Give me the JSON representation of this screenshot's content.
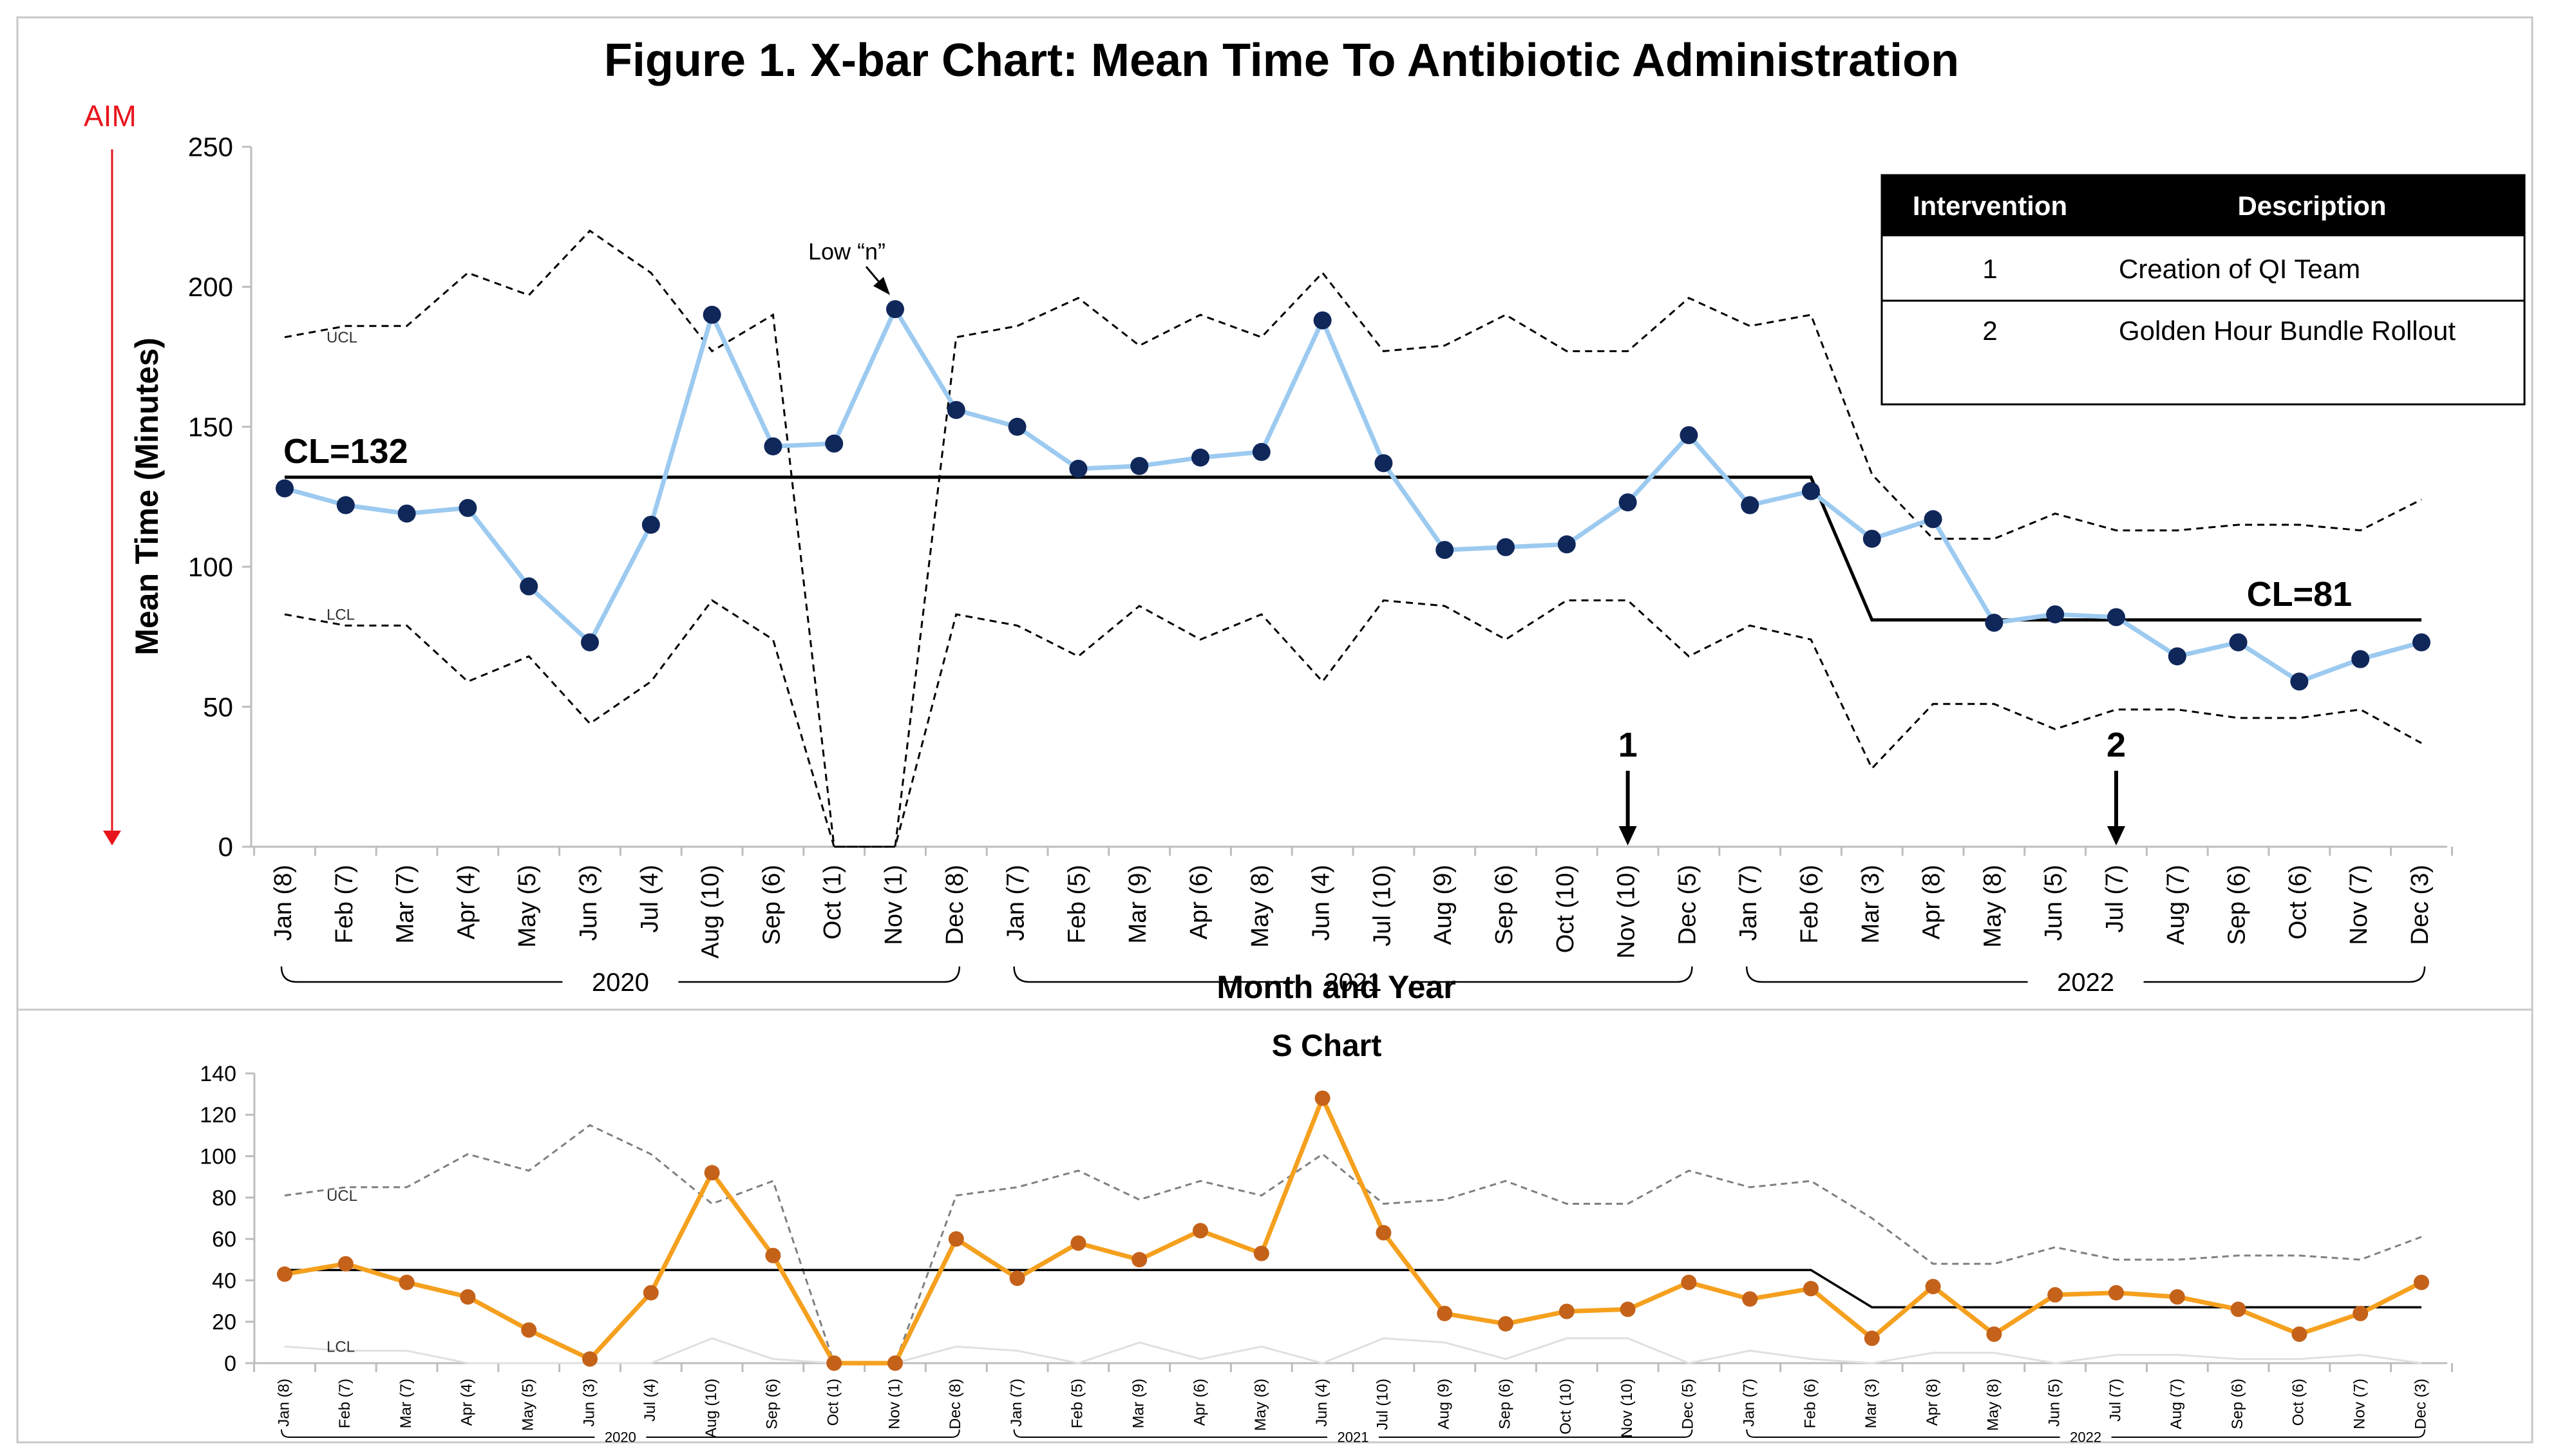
{
  "figure_title": "Figure 1. X-bar Chart: Mean Time To Antibiotic Administration",
  "aim_label": "AIM",
  "categories": [
    "Jan (8)",
    "Feb (7)",
    "Mar (7)",
    "Apr (4)",
    "May (5)",
    "Jun (3)",
    "Jul (4)",
    "Aug (10)",
    "Sep (6)",
    "Oct (1)",
    "Nov (1)",
    "Dec (8)",
    "Jan (7)",
    "Feb (5)",
    "Mar (9)",
    "Apr (6)",
    "May (8)",
    "Jun (4)",
    "Jul (10)",
    "Aug (9)",
    "Sep (6)",
    "Oct (10)",
    "Nov (10)",
    "Dec (5)",
    "Jan (7)",
    "Feb (6)",
    "Mar (3)",
    "Apr (8)",
    "May (8)",
    "Jun (5)",
    "Jul (7)",
    "Aug (7)",
    "Sep (6)",
    "Oct (6)",
    "Nov (7)",
    "Dec (3)"
  ],
  "year_groups": [
    {
      "label": "2020",
      "start": 0,
      "end": 11
    },
    {
      "label": "2021",
      "start": 12,
      "end": 23
    },
    {
      "label": "2022",
      "start": 24,
      "end": 35
    }
  ],
  "intervention_table": {
    "headers": [
      "Intervention",
      "Description"
    ],
    "rows": [
      {
        "number": "1",
        "description": "Creation of QI Team"
      },
      {
        "number": "2",
        "description": "Golden Hour Bundle Rollout"
      }
    ]
  },
  "colors": {
    "xbar_line": "#9ccaf0",
    "xbar_marker": "#10275a",
    "s_line": "#f5a01e",
    "s_marker": "#c4621a",
    "aim_arrow": "#e8141c"
  },
  "chart_data": [
    {
      "type": "line",
      "title": "Figure 1. X-bar Chart: Mean Time To Antibiotic Administration",
      "xlabel": "Month and Year",
      "ylabel": "Mean Time (Minutes)",
      "ylim": [
        0,
        250
      ],
      "yticks": [
        0,
        50,
        100,
        150,
        200,
        250
      ],
      "series": [
        {
          "values": [
            128,
            122,
            119,
            121,
            93,
            73,
            115,
            190,
            143,
            144,
            192,
            156,
            150,
            135,
            136,
            139,
            141,
            188,
            137,
            106,
            107,
            108,
            123,
            147,
            122,
            127,
            110,
            117,
            80,
            83,
            82,
            68,
            73,
            59,
            67,
            73
          ]
        },
        {
          "name": "UCL",
          "values": [
            182,
            186,
            186,
            205,
            197,
            220,
            205,
            177,
            190,
            0,
            0,
            182,
            186,
            196,
            179,
            190,
            182,
            205,
            177,
            179,
            190,
            177,
            177,
            196,
            186,
            190,
            133,
            110,
            110,
            119,
            113,
            113,
            115,
            115,
            113,
            124
          ]
        },
        {
          "name": "LCL",
          "values": [
            83,
            79,
            79,
            59,
            68,
            44,
            59,
            88,
            74,
            0,
            0,
            83,
            79,
            68,
            86,
            74,
            83,
            59,
            88,
            86,
            74,
            88,
            88,
            68,
            79,
            74,
            28,
            51,
            51,
            42,
            49,
            49,
            46,
            46,
            49,
            37
          ]
        },
        {
          "values": [
            132,
            132,
            132,
            132,
            132,
            132,
            132,
            132,
            132,
            132,
            132,
            132,
            132,
            132,
            132,
            132,
            132,
            132,
            132,
            132,
            132,
            132,
            132,
            132,
            132,
            132,
            81,
            81,
            81,
            81,
            81,
            81,
            81,
            81,
            81,
            81
          ]
        }
      ],
      "center_line_labels": [
        {
          "text": "CL=132",
          "at_index": 1
        },
        {
          "text": "CL=81",
          "at_index": 33
        }
      ],
      "annotations": [
        {
          "text": "Low “n”",
          "target_index": 10
        },
        {
          "text": "1",
          "at_index": 22
        },
        {
          "text": "2",
          "at_index": 30
        }
      ],
      "grid": false
    },
    {
      "type": "line",
      "title": "S Chart",
      "ylim": [
        0,
        140
      ],
      "yticks": [
        0,
        20,
        40,
        60,
        80,
        100,
        120,
        140
      ],
      "series": [
        {
          "values": [
            43,
            48,
            39,
            32,
            16,
            2,
            34,
            92,
            52,
            0,
            0,
            60,
            41,
            58,
            50,
            64,
            53,
            128,
            63,
            24,
            19,
            25,
            26,
            39,
            31,
            36,
            12,
            37,
            14,
            33,
            34,
            32,
            26,
            14,
            24,
            39
          ]
        },
        {
          "name": "UCL",
          "values": [
            81,
            85,
            85,
            101,
            93,
            115,
            101,
            77,
            88,
            0,
            0,
            81,
            85,
            93,
            79,
            88,
            81,
            101,
            77,
            79,
            88,
            77,
            77,
            93,
            85,
            88,
            70,
            48,
            48,
            56,
            50,
            50,
            52,
            52,
            50,
            61
          ]
        },
        {
          "name": "LCL",
          "values": [
            8,
            6,
            6,
            0,
            0,
            0,
            0,
            12,
            2,
            0,
            0,
            8,
            6,
            0,
            10,
            2,
            8,
            0,
            12,
            10,
            2,
            12,
            12,
            0,
            6,
            2,
            0,
            5,
            5,
            0,
            4,
            4,
            2,
            2,
            4,
            0
          ]
        },
        {
          "values": [
            45,
            45,
            45,
            45,
            45,
            45,
            45,
            45,
            45,
            45,
            45,
            45,
            45,
            45,
            45,
            45,
            45,
            45,
            45,
            45,
            45,
            45,
            45,
            45,
            45,
            45,
            27,
            27,
            27,
            27,
            27,
            27,
            27,
            27,
            27,
            27
          ]
        }
      ],
      "grid": false
    }
  ]
}
